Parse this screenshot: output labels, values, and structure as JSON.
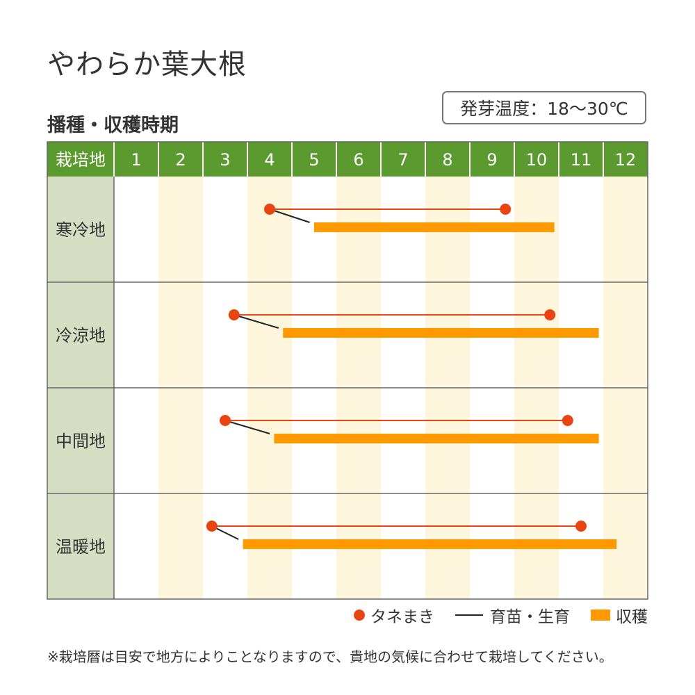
{
  "title": "やわらか葉大根",
  "subtitle": "播種・収穫時期",
  "germination_temp": "発芽温度：18〜30℃",
  "colors": {
    "header_green": "#5a9a2f",
    "row_label_bg": "#d5dec3",
    "alt_column": "#fdf5dc",
    "sowing": "#ea4410",
    "seedling": "#222222",
    "harvest": "#ff9900"
  },
  "chart_data": {
    "type": "gantt",
    "header_label": "栽培地",
    "months": [
      "1",
      "2",
      "3",
      "4",
      "5",
      "6",
      "7",
      "8",
      "9",
      "10",
      "11",
      "12"
    ],
    "shaded_months": [
      "2",
      "4",
      "6",
      "8",
      "10",
      "12"
    ],
    "rows": [
      {
        "region": "寒冷地",
        "sowing": [
          4.5,
          9.8
        ],
        "seedling_to": 5.4,
        "harvest": [
          5.5,
          10.9
        ]
      },
      {
        "region": "冷涼地",
        "sowing": [
          3.7,
          10.8
        ],
        "seedling_to": 4.7,
        "harvest": [
          4.8,
          11.9
        ]
      },
      {
        "region": "中間地",
        "sowing": [
          3.5,
          11.2
        ],
        "seedling_to": 4.5,
        "harvest": [
          4.6,
          11.9
        ]
      },
      {
        "region": "温暖地",
        "sowing": [
          3.2,
          11.5
        ],
        "seedling_to": 3.8,
        "harvest": [
          3.9,
          12.3
        ]
      }
    ]
  },
  "legend": {
    "sowing": "タネまき",
    "seedling": "育苗・生育",
    "harvest": "収穫"
  },
  "note": "※栽培暦は目安で地方によりことなりますので、貴地の気候に合わせて栽培してください。"
}
